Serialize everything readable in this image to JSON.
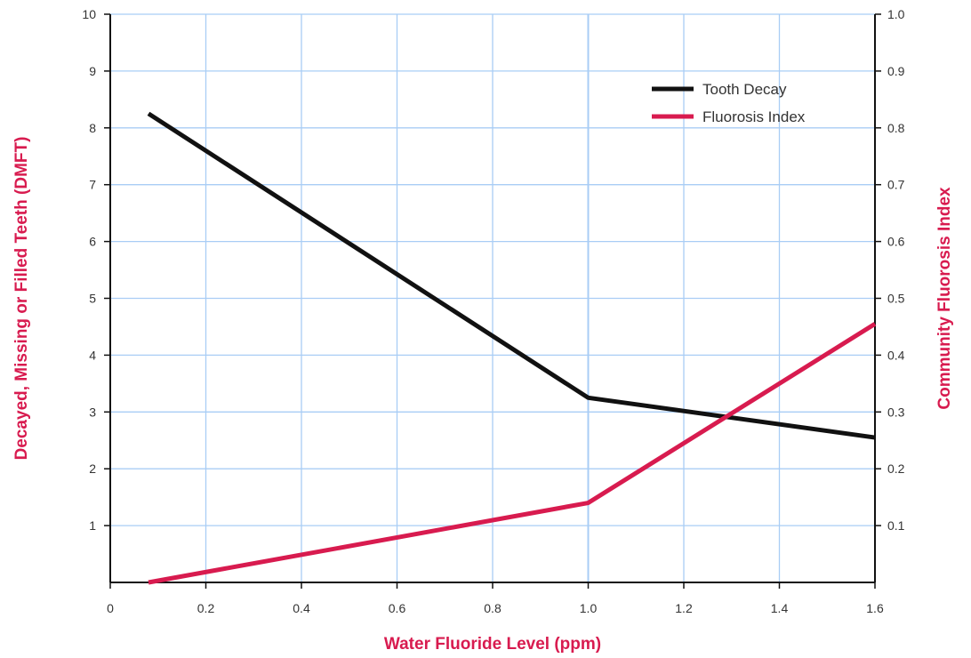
{
  "chart_data": {
    "type": "line",
    "title": "",
    "xlabel": "Water Fluoride Level (ppm)",
    "ylabel_left": "Decayed, Missing or Filled Teeth (DMFT)",
    "ylabel_right": "Community Fluorosis Index",
    "xlim": [
      0,
      1.6
    ],
    "ylim_left": [
      0,
      10
    ],
    "ylim_right": [
      0,
      1.0
    ],
    "x_ticks": [
      "0",
      "0.2",
      "0.4",
      "0.6",
      "0.8",
      "1.0",
      "1.2",
      "1.4",
      "1.6"
    ],
    "x_tick_values": [
      0,
      0.2,
      0.4,
      0.6,
      0.8,
      1.0,
      1.2,
      1.4,
      1.6
    ],
    "y_left_ticks": [
      "1",
      "2",
      "3",
      "4",
      "5",
      "6",
      "7",
      "8",
      "9",
      "10"
    ],
    "y_left_tick_values": [
      1,
      2,
      3,
      4,
      5,
      6,
      7,
      8,
      9,
      10
    ],
    "y_right_ticks": [
      "0.1",
      "0.2",
      "0.3",
      "0.4",
      "0.5",
      "0.6",
      "0.7",
      "0.8",
      "0.9",
      "1.0"
    ],
    "y_right_tick_values": [
      0.1,
      0.2,
      0.3,
      0.4,
      0.5,
      0.6,
      0.7,
      0.8,
      0.9,
      1.0
    ],
    "grid": true,
    "legend_position": "top-right",
    "series": [
      {
        "name": "Tooth Decay",
        "axis": "left",
        "color": "#111111",
        "x": [
          0.08,
          1.0,
          1.6
        ],
        "y": [
          8.25,
          3.25,
          2.55
        ]
      },
      {
        "name": "Fluorosis Index",
        "axis": "right",
        "color": "#d81b4f",
        "x": [
          0.08,
          1.0,
          1.6
        ],
        "y": [
          0.0,
          0.14,
          0.455
        ]
      }
    ],
    "colors": {
      "grid": "#a9cdf5",
      "axis": "#111111",
      "axis_title": "#d81b4f"
    }
  }
}
